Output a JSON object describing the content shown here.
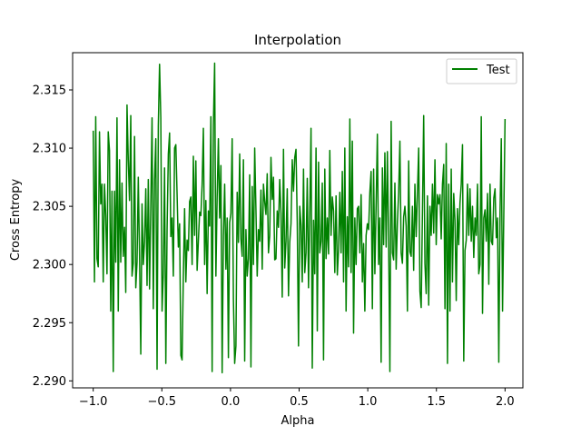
{
  "chart_data": {
    "type": "line",
    "title": "Interpolation",
    "xlabel": "Alpha",
    "ylabel": "Cross Entropy",
    "xlim": [
      -1.15,
      2.13
    ],
    "ylim": [
      2.2894,
      2.3182
    ],
    "xticks": [
      -1.0,
      -0.5,
      0.0,
      0.5,
      1.0,
      1.5,
      2.0
    ],
    "xtick_labels": [
      "−1.0",
      "−0.5",
      "0.0",
      "0.5",
      "1.0",
      "1.5",
      "2.0"
    ],
    "yticks": [
      2.29,
      2.295,
      2.3,
      2.305,
      2.31,
      2.315
    ],
    "ytick_labels": [
      "2.290",
      "2.295",
      "2.300",
      "2.305",
      "2.310",
      "2.315"
    ],
    "grid": false,
    "legend_position": "top-right",
    "series": [
      {
        "name": "Test",
        "color": "#008000",
        "x_start": -1.0,
        "x_end": 2.0,
        "values": [
          2.3115,
          2.2985,
          2.3127,
          2.3005,
          2.2998,
          2.3114,
          2.3052,
          2.3069,
          2.2985,
          2.3069,
          2.3042,
          2.2992,
          2.3114,
          2.3098,
          2.296,
          2.3063,
          2.2908,
          2.3063,
          2.3002,
          2.3126,
          2.296,
          2.309,
          2.3002,
          2.307,
          2.3007,
          2.3032,
          2.2976,
          2.3137,
          2.309,
          2.3055,
          2.3128,
          2.299,
          2.3001,
          2.311,
          2.298,
          2.3002,
          2.3075,
          2.3009,
          2.2923,
          2.3052,
          2.3,
          2.302,
          2.3065,
          2.2982,
          2.3073,
          2.2979,
          2.305,
          2.3126,
          2.2962,
          2.3073,
          2.3108,
          2.291,
          2.3119,
          2.3172,
          2.3126,
          2.296,
          2.2992,
          2.3083,
          2.2915,
          2.303,
          2.3095,
          2.3113,
          2.3024,
          2.304,
          2.299,
          2.31,
          2.3103,
          2.306,
          2.3015,
          2.3035,
          2.2922,
          2.2918,
          2.299,
          2.3048,
          2.2985,
          2.3021,
          2.3012,
          2.3054,
          2.3058,
          2.3,
          2.3093,
          2.3025,
          2.3089,
          2.2995,
          2.302,
          2.3045,
          2.3042,
          2.3069,
          2.3117,
          2.3,
          2.3055,
          2.2975,
          2.3046,
          2.3033,
          2.3127,
          2.2908,
          2.312,
          2.3173,
          2.299,
          2.3058,
          2.3108,
          2.304,
          2.3085,
          2.2907,
          2.3025,
          2.3069,
          2.2996,
          2.304,
          2.292,
          2.3036,
          2.3044,
          2.3108,
          2.297,
          2.2915,
          2.293,
          2.3062,
          2.3019,
          2.3095,
          2.3022,
          2.3007,
          2.309,
          2.2917,
          2.303,
          2.299,
          2.3005,
          2.3077,
          2.2912,
          2.3067,
          2.3,
          2.31,
          2.3047,
          2.299,
          2.303,
          2.302,
          2.3064,
          2.2996,
          2.3069,
          2.3054,
          2.3043,
          2.3078,
          2.301,
          2.3025,
          2.3092,
          2.3056,
          2.3075,
          2.3004,
          2.3005,
          2.3046,
          2.3032,
          2.3073,
          2.3044,
          2.2972,
          2.3099,
          2.2997,
          2.302,
          2.3065,
          2.2973,
          2.3019,
          2.3035,
          2.309,
          2.3063,
          2.3092,
          2.3099,
          2.3036,
          2.293,
          2.305,
          2.3034,
          2.2985,
          2.3082,
          2.2993,
          2.301,
          2.3074,
          2.298,
          2.3043,
          2.3117,
          2.2911,
          2.3038,
          2.2992,
          2.31,
          2.2943,
          2.3088,
          2.301,
          2.302,
          2.307,
          2.2918,
          2.3082,
          2.3005,
          2.304,
          2.3009,
          2.3098,
          2.3025,
          2.3058,
          2.3046,
          2.2993,
          2.3059,
          2.2991,
          2.3013,
          2.3062,
          2.301,
          2.308,
          2.2985,
          2.31,
          2.296,
          2.3041,
          2.2998,
          2.3125,
          2.2993,
          2.3106,
          2.2941,
          2.304,
          2.3,
          2.3048,
          2.305,
          2.301,
          2.306,
          2.2985,
          2.3018,
          2.296,
          2.3025,
          2.3035,
          2.303,
          2.3062,
          2.308,
          2.2962,
          2.3082,
          2.2992,
          2.3051,
          2.3112,
          2.3,
          2.304,
          2.2916,
          2.3083,
          2.3017,
          2.3096,
          2.3015,
          2.3097,
          2.302,
          2.2908,
          2.3123,
          2.301,
          2.3004,
          2.307,
          2.2996,
          2.3036,
          2.3062,
          2.3106,
          2.301,
          2.3001,
          2.3041,
          2.305,
          2.3033,
          2.296,
          2.3089,
          2.3011,
          2.3007,
          2.305,
          2.2995,
          2.3069,
          2.3024,
          2.3061,
          2.31,
          2.2977,
          2.2963,
          2.3044,
          2.3128,
          2.3001,
          2.2975,
          2.3059,
          2.2965,
          2.305,
          2.3025,
          2.3069,
          2.3027,
          2.309,
          2.3017,
          2.306,
          2.3052,
          2.306,
          2.3022,
          2.3069,
          2.3086,
          2.2962,
          2.3104,
          2.2915,
          2.3069,
          2.296,
          2.3082,
          2.2985,
          2.3061,
          2.3038,
          2.2969,
          2.3048,
          2.3017,
          2.3053,
          2.3069,
          2.3103,
          2.2917,
          2.3012,
          2.3021,
          2.3069,
          2.3025,
          2.3065,
          2.302,
          2.305,
          2.3006,
          2.304,
          2.3025,
          2.3069,
          2.2992,
          2.3,
          2.3127,
          2.2958,
          2.304,
          2.3047,
          2.302,
          2.3061,
          2.2983,
          2.3069,
          2.302,
          2.3017,
          2.3057,
          2.3065,
          2.3023,
          2.304,
          2.2916,
          2.3045,
          2.3108,
          2.296,
          2.3043,
          2.3125
        ]
      }
    ]
  }
}
